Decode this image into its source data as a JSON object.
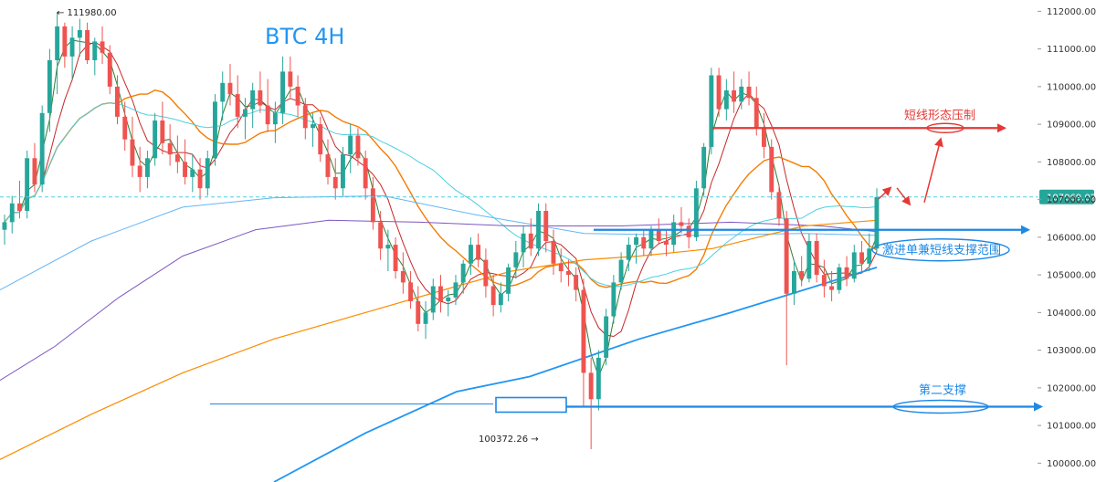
{
  "chart_data": {
    "type": "candlestick",
    "title": "BTC    4H",
    "symbol": "BTC",
    "timeframe": "4H",
    "ylim": [
      99500,
      112300
    ],
    "yticks": [
      100000,
      101000,
      102000,
      103000,
      104000,
      105000,
      106000,
      107000,
      108000,
      109000,
      110000,
      111000,
      112000
    ],
    "ytick_labels": [
      "100000.00",
      "101000.00",
      "102000.00",
      "103000.00",
      "104000.00",
      "105000.00",
      "106000.00",
      "107000.00",
      "108000.00",
      "109000.00",
      "110000.00",
      "111000.00",
      "112000.00"
    ],
    "grid": false,
    "current_price": 107069.02,
    "current_price_label": "107069.02",
    "high_label": "← 111980.00",
    "high_value": 111980,
    "low_label": "100372.26 →",
    "low_value": 100372.26,
    "candles_ohlc": [
      [
        106200,
        106600,
        105800,
        106400
      ],
      [
        106400,
        107100,
        106100,
        106900
      ],
      [
        106900,
        107500,
        106500,
        106700
      ],
      [
        106700,
        108300,
        106500,
        108100
      ],
      [
        108100,
        108500,
        107200,
        107400
      ],
      [
        107400,
        109500,
        107200,
        109300
      ],
      [
        109300,
        111000,
        108800,
        110700
      ],
      [
        110700,
        111980,
        109800,
        111600
      ],
      [
        111600,
        111700,
        110500,
        110800
      ],
      [
        110800,
        111600,
        110200,
        111300
      ],
      [
        111300,
        111800,
        110800,
        111500
      ],
      [
        111500,
        111700,
        110600,
        110700
      ],
      [
        110700,
        111300,
        110300,
        111200
      ],
      [
        111200,
        111600,
        110600,
        110900
      ],
      [
        110900,
        111100,
        109800,
        110000
      ],
      [
        110000,
        110300,
        109000,
        109200
      ],
      [
        109200,
        109600,
        108300,
        108600
      ],
      [
        108600,
        109200,
        107600,
        107900
      ],
      [
        107900,
        108400,
        107200,
        107600
      ],
      [
        107600,
        108300,
        107300,
        108100
      ],
      [
        108100,
        109300,
        107900,
        109100
      ],
      [
        109100,
        109600,
        108200,
        108500
      ],
      [
        108500,
        109000,
        107900,
        108200
      ],
      [
        108200,
        108700,
        107700,
        108000
      ],
      [
        108000,
        108600,
        107400,
        107600
      ],
      [
        107600,
        108200,
        107200,
        107800
      ],
      [
        107800,
        108100,
        107000,
        107300
      ],
      [
        107300,
        108300,
        107100,
        108100
      ],
      [
        108100,
        109800,
        107900,
        109600
      ],
      [
        109600,
        110400,
        109100,
        110100
      ],
      [
        110100,
        110600,
        109500,
        109800
      ],
      [
        109800,
        110300,
        108900,
        109200
      ],
      [
        109200,
        109700,
        108600,
        109400
      ],
      [
        109400,
        110100,
        108900,
        109900
      ],
      [
        109900,
        110400,
        109300,
        109500
      ],
      [
        109500,
        110200,
        108800,
        109000
      ],
      [
        109000,
        109600,
        108500,
        109300
      ],
      [
        109300,
        110800,
        109000,
        110400
      ],
      [
        110400,
        110800,
        109700,
        110000
      ],
      [
        110000,
        110300,
        109200,
        109500
      ],
      [
        109500,
        109700,
        108600,
        108900
      ],
      [
        108900,
        109300,
        108400,
        109000
      ],
      [
        109000,
        109200,
        108000,
        108200
      ],
      [
        108200,
        108600,
        107400,
        107600
      ],
      [
        107600,
        108100,
        107000,
        107300
      ],
      [
        107300,
        108400,
        107100,
        108200
      ],
      [
        108200,
        109000,
        107700,
        108700
      ],
      [
        108700,
        108900,
        107900,
        108100
      ],
      [
        108100,
        108300,
        107000,
        107300
      ],
      [
        107300,
        107600,
        106200,
        106400
      ],
      [
        106400,
        106700,
        105400,
        105700
      ],
      [
        105700,
        106200,
        105100,
        105800
      ],
      [
        105800,
        106000,
        104900,
        105100
      ],
      [
        105100,
        105600,
        104500,
        104800
      ],
      [
        104800,
        105100,
        104100,
        104300
      ],
      [
        104300,
        104700,
        103500,
        103700
      ],
      [
        103700,
        104300,
        103300,
        104000
      ],
      [
        104000,
        104900,
        103800,
        104700
      ],
      [
        104700,
        105000,
        104000,
        104300
      ],
      [
        104300,
        104600,
        103900,
        104400
      ],
      [
        104400,
        105000,
        104200,
        104800
      ],
      [
        104800,
        105400,
        104500,
        105300
      ],
      [
        105300,
        106000,
        105000,
        105800
      ],
      [
        105800,
        106100,
        105200,
        105400
      ],
      [
        105400,
        105700,
        104400,
        104700
      ],
      [
        104700,
        105000,
        103900,
        104200
      ],
      [
        104200,
        104800,
        104000,
        104500
      ],
      [
        104500,
        105300,
        104300,
        105200
      ],
      [
        105200,
        105900,
        104900,
        105600
      ],
      [
        105600,
        106300,
        105200,
        106100
      ],
      [
        106100,
        106500,
        105500,
        105700
      ],
      [
        105700,
        106900,
        105500,
        106700
      ],
      [
        106700,
        106900,
        105600,
        105900
      ],
      [
        105900,
        106200,
        105000,
        105300
      ],
      [
        105300,
        105700,
        104800,
        105100
      ],
      [
        105100,
        105400,
        104700,
        105000
      ],
      [
        105000,
        105200,
        104300,
        104600
      ],
      [
        104600,
        104900,
        101500,
        102400
      ],
      [
        102400,
        102800,
        100372,
        101700
      ],
      [
        101700,
        103000,
        101400,
        102800
      ],
      [
        102800,
        104100,
        102600,
        103900
      ],
      [
        103900,
        105000,
        103700,
        104800
      ],
      [
        104800,
        105600,
        104600,
        105400
      ],
      [
        105400,
        106000,
        105100,
        105800
      ],
      [
        105800,
        106100,
        105300,
        106000
      ],
      [
        106000,
        106200,
        105500,
        105700
      ],
      [
        105700,
        106300,
        105500,
        106200
      ],
      [
        106200,
        106500,
        105800,
        105900
      ],
      [
        105900,
        106200,
        105500,
        105800
      ],
      [
        105800,
        106600,
        105600,
        106400
      ],
      [
        106400,
        106800,
        106100,
        106300
      ],
      [
        106300,
        106500,
        105700,
        106000
      ],
      [
        106000,
        107500,
        105900,
        107300
      ],
      [
        107300,
        108500,
        107100,
        108400
      ],
      [
        108400,
        110500,
        108200,
        110300
      ],
      [
        110300,
        110500,
        109200,
        109400
      ],
      [
        109400,
        110200,
        109100,
        109900
      ],
      [
        109900,
        110400,
        109300,
        109600
      ],
      [
        109600,
        110200,
        109400,
        110000
      ],
      [
        110000,
        110400,
        109500,
        109700
      ],
      [
        109700,
        110000,
        108700,
        108900
      ],
      [
        108900,
        109300,
        108100,
        108400
      ],
      [
        108400,
        108600,
        107000,
        107200
      ],
      [
        107200,
        107400,
        106300,
        106500
      ],
      [
        106500,
        106700,
        102600,
        104500
      ],
      [
        104500,
        105400,
        104200,
        105100
      ],
      [
        105100,
        105500,
        104700,
        104900
      ],
      [
        104900,
        106100,
        104800,
        105900
      ],
      [
        105900,
        106100,
        104800,
        105000
      ],
      [
        105000,
        105400,
        104400,
        104700
      ],
      [
        104700,
        105100,
        104300,
        104600
      ],
      [
        104600,
        105300,
        104500,
        105200
      ],
      [
        105200,
        105500,
        104700,
        104900
      ],
      [
        104900,
        105800,
        104800,
        105600
      ],
      [
        105600,
        105900,
        105100,
        105300
      ],
      [
        105300,
        106100,
        105100,
        105700
      ],
      [
        105700,
        107300,
        105600,
        107069
      ]
    ],
    "annotations": [
      {
        "text": "短线形态压制",
        "value": 108900,
        "color": "#e53935"
      },
      {
        "text": "激进单兼短线支撑范围",
        "value": 106100,
        "color": "#1e88e5"
      },
      {
        "text": "第二支撑",
        "value": 101500,
        "color": "#1e88e5"
      }
    ],
    "colors": {
      "up": "#26a69a",
      "down": "#ef5350",
      "ma_fast": "#2e7d32",
      "ma_red": "#c62828",
      "ma_orange": "#f57c00",
      "ma_cyan": "#4dd0e1",
      "ma_purple": "#7e57c2",
      "ma_blue": "#2196f3",
      "ma_orange_long": "#fb8c00",
      "ma_skyblue": "#64b5f6",
      "resistance": "#e53935",
      "support": "#1e88e5",
      "price_tag": "#26a69a"
    }
  }
}
